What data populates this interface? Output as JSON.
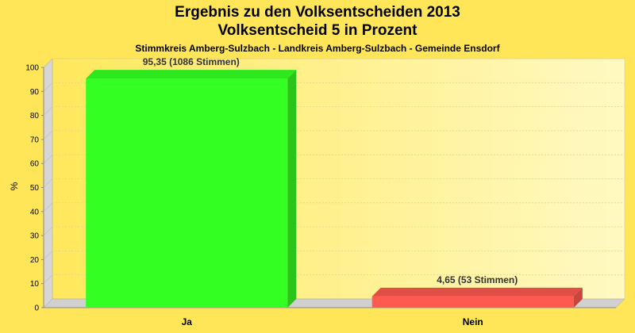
{
  "chart_data": {
    "type": "bar",
    "title": "Ergebnis zu den Volksentscheiden 2013",
    "title2": "Volksentscheid 5 in Prozent",
    "subtitle": "Stimmkreis Amberg-Sulzbach - Landkreis Amberg-Sulzbach - Gemeinde Ensdorf",
    "ylabel": "%",
    "xlabel": "",
    "ylim": [
      0,
      100
    ],
    "yticks": [
      0,
      10,
      20,
      30,
      40,
      50,
      60,
      70,
      80,
      90,
      100
    ],
    "grid": true,
    "categories": [
      "Ja",
      "Nein"
    ],
    "values": [
      95.35,
      4.65
    ],
    "data_labels": [
      "95,35 (1086 Stimmen)",
      "4,65 (53 Stimmen)"
    ],
    "bar_colors": [
      "#33ff22",
      "#ff5a4f"
    ],
    "bar_side_colors": [
      "#2bc41a",
      "#c9443a"
    ],
    "bar_top_colors": [
      "#2ee81e",
      "#e04f45"
    ]
  },
  "colors": {
    "background": "#ffe658",
    "plot_background_left": "#ffe85c",
    "plot_background_right": "#fff9c2",
    "side_wall": "#d6d6d6",
    "floor": "#d0d0d0"
  }
}
